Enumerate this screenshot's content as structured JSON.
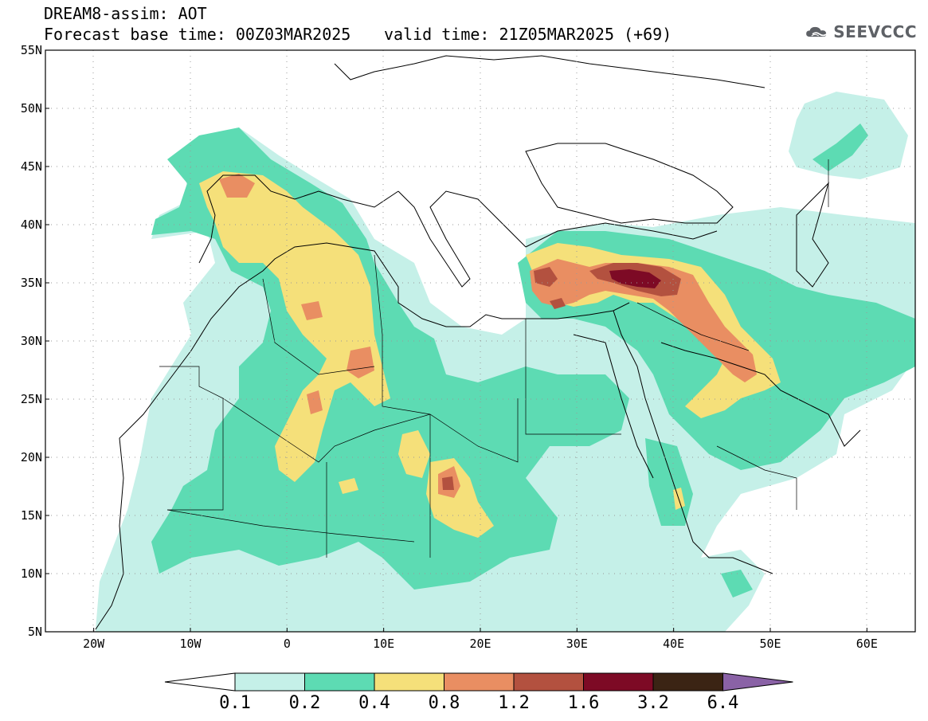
{
  "header": {
    "title": "DREAM8-assim: AOT",
    "base_time": "Forecast base time: 00Z03MAR2025",
    "valid_time": "valid time: 21Z05MAR2025 (+69)",
    "logo_text": "SEEVCCC",
    "logo_icon": "cloud-icon"
  },
  "map": {
    "lat_labels": [
      "55N",
      "50N",
      "45N",
      "40N",
      "35N",
      "30N",
      "25N",
      "20N",
      "15N",
      "10N",
      "5N"
    ],
    "lon_labels": [
      "20W",
      "10W",
      "0",
      "10E",
      "20E",
      "30E",
      "40E",
      "50E",
      "60E"
    ],
    "lat_range": [
      5,
      55
    ],
    "lon_range": [
      -25,
      65
    ],
    "grid": "dotted"
  },
  "colorbar": {
    "levels": [
      "0.1",
      "0.2",
      "0.4",
      "0.8",
      "1.2",
      "1.6",
      "3.2",
      "6.4"
    ],
    "colors": [
      "#ffffff",
      "#c5f0e8",
      "#5ddbb3",
      "#f5e07a",
      "#e98e62",
      "#b3513f",
      "#7d0a25",
      "#3b2414",
      "#8a62a6"
    ]
  }
}
